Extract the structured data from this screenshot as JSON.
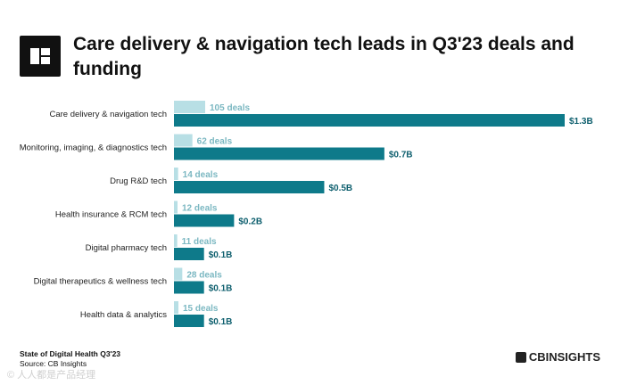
{
  "header": {
    "title": "Care delivery & navigation tech leads in Q3'23 deals and funding"
  },
  "footer": {
    "line1": "State of Digital Health Q3'23",
    "line2": "Source: CB Insights",
    "brand": "CBINSIGHTS",
    "watermark": "© 人人都是产品经理"
  },
  "colors": {
    "deals_bar": "#b8dfe5",
    "funding_bar": "#0e7a8a",
    "deals_label": "#7cb8c2",
    "funding_label": "#0e5f6e"
  },
  "chart_data": {
    "type": "bar",
    "orientation": "horizontal",
    "title": "Care delivery & navigation tech leads in Q3'23 deals and funding",
    "categories": [
      "Care delivery & navigation tech",
      "Monitoring, imaging, & diagnostics tech",
      "Drug R&D tech",
      "Health insurance & RCM tech",
      "Digital pharmacy tech",
      "Digital therapeutics & wellness tech",
      "Health data & analytics"
    ],
    "series": [
      {
        "name": "Deals",
        "values": [
          105,
          62,
          14,
          12,
          11,
          28,
          15
        ],
        "labels": [
          "105 deals",
          "62 deals",
          "14 deals",
          "12 deals",
          "11 deals",
          "28 deals",
          "15 deals"
        ]
      },
      {
        "name": "Funding ($B)",
        "values": [
          1.3,
          0.7,
          0.5,
          0.2,
          0.1,
          0.1,
          0.1
        ],
        "labels": [
          "$1.3B",
          "$0.7B",
          "$0.5B",
          "$0.2B",
          "$0.1B",
          "$0.1B",
          "$0.1B"
        ]
      }
    ],
    "xlabel": "",
    "ylabel": "",
    "grid": false
  }
}
